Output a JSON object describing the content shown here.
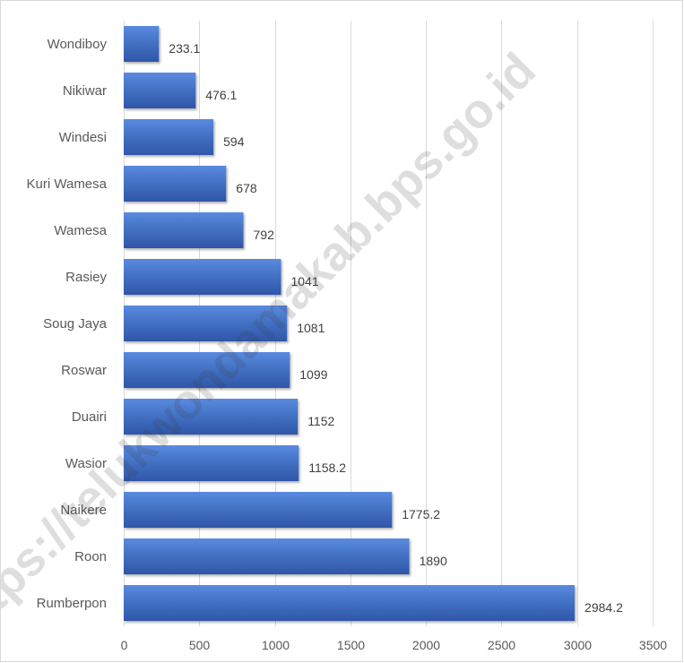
{
  "chart_data": {
    "type": "bar",
    "orientation": "horizontal",
    "categories": [
      "Wondiboy",
      "Nikiwar",
      "Windesi",
      "Kuri Wamesa",
      "Wamesa",
      "Rasiey",
      "Soug Jaya",
      "Roswar",
      "Duairi",
      "Wasior",
      "Naikere",
      "Roon",
      "Rumberpon"
    ],
    "values": [
      233.1,
      476.1,
      594,
      678,
      792,
      1041,
      1081,
      1099,
      1152,
      1158.2,
      1775.2,
      1890,
      2984.2
    ],
    "data_labels": [
      "233.1",
      "476.1",
      "594",
      "678",
      "792",
      "1041",
      "1081",
      "1099",
      "1152",
      "1158.2",
      "1775.2",
      "1890",
      "2984.2"
    ],
    "x_ticks": [
      "0",
      "500",
      "1000",
      "1500",
      "2000",
      "2500",
      "3000",
      "3500"
    ],
    "xlim": [
      0,
      3500
    ],
    "title": "",
    "xlabel": "",
    "ylabel": "",
    "grid": "vertical",
    "legend": "none",
    "bar_color": "#4472c4",
    "bar_color_light": "#5a8ae0",
    "bar_color_dark": "#2f56a8"
  },
  "watermark": "https://telukwondamakab.bps.go.id"
}
